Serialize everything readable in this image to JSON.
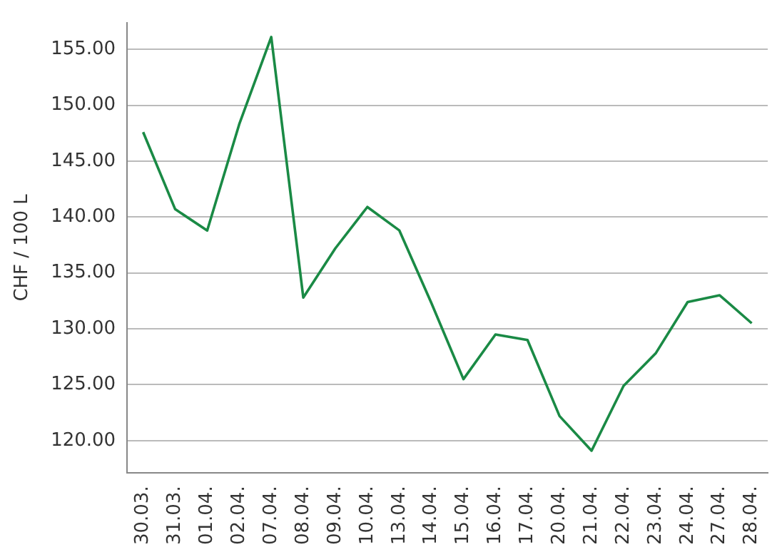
{
  "chart_data": {
    "type": "line",
    "ylabel": "CHF / 100 L",
    "categories": [
      "30.03.",
      "31.03.",
      "01.04.",
      "02.04.",
      "07.04.",
      "08.04.",
      "09.04.",
      "10.04.",
      "13.04.",
      "14.04.",
      "15.04.",
      "16.04.",
      "17.04.",
      "20.04.",
      "21.04.",
      "22.04.",
      "23.04.",
      "24.04.",
      "27.04.",
      "28.04."
    ],
    "series": [
      {
        "color": "#1a8a45",
        "values": [
          147.6,
          140.7,
          138.8,
          148.3,
          156.1,
          132.8,
          137.2,
          140.9,
          138.8,
          132.3,
          125.5,
          129.5,
          129.0,
          122.2,
          119.1,
          124.9,
          127.8,
          132.4,
          133.0,
          130.5
        ]
      }
    ],
    "ylim": [
      117.1,
      157.4
    ],
    "yticks": [
      {
        "value": 120,
        "label": "120.00"
      },
      {
        "value": 125,
        "label": "125.00"
      },
      {
        "value": 130,
        "label": "130.00"
      },
      {
        "value": 135,
        "label": "135.00"
      },
      {
        "value": 140,
        "label": "140.00"
      },
      {
        "value": 145,
        "label": "145.00"
      },
      {
        "value": 150,
        "label": "150.00"
      },
      {
        "value": 155,
        "label": "155.00"
      }
    ],
    "grid": "y",
    "legend": false,
    "marker": "none",
    "line_style": "solid"
  }
}
